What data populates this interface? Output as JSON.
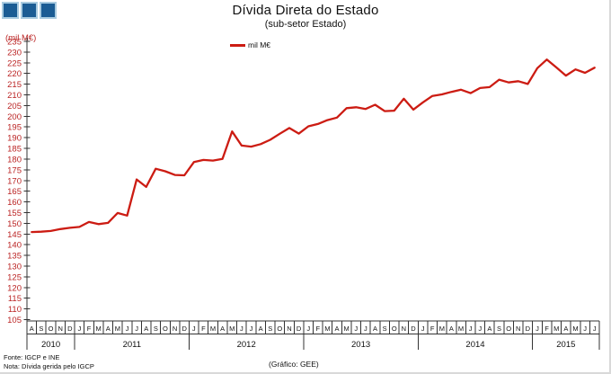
{
  "header": {
    "title": "Dívida Direta do Estado",
    "subtitle": "(sub-setor Estado)"
  },
  "legend": {
    "label": "mil M€"
  },
  "y_axis_unit": "(mil M€)",
  "footer": {
    "fonte": "Fonte: IGCP e INE",
    "nota": "Nota: Dívida gerida pelo IGCP",
    "grafico": "(Gráfico: GEE)"
  },
  "colors": {
    "line": "#cc1c13",
    "tick_label": "#bb2424",
    "axis": "#333333",
    "logo_blue": "#1b5c94",
    "logo_border": "#a9cbe0"
  },
  "chart_data": {
    "type": "line",
    "title": "Dívida Direta do Estado",
    "subtitle": "(sub-setor Estado)",
    "series_name": "mil M€",
    "ylabel": "(mil M€)",
    "ylim": [
      105,
      235
    ],
    "y_tick_step": 5,
    "legend_position": "top",
    "grid": false,
    "years": [
      {
        "label": "2010",
        "months": [
          "A",
          "S",
          "O",
          "N",
          "D"
        ],
        "values": [
          145.9,
          146.1,
          146.4,
          147.3,
          147.9
        ]
      },
      {
        "label": "2011",
        "months": [
          "J",
          "F",
          "M",
          "A",
          "M",
          "J",
          "J",
          "A",
          "S",
          "O",
          "N",
          "D"
        ],
        "values": [
          148.3,
          150.6,
          149.6,
          150.2,
          154.8,
          153.6,
          170.5,
          167.0,
          175.5,
          174.3,
          172.6,
          172.4
        ]
      },
      {
        "label": "2012",
        "months": [
          "J",
          "F",
          "M",
          "A",
          "M",
          "J",
          "J",
          "A",
          "S",
          "O",
          "N",
          "D"
        ],
        "values": [
          178.6,
          179.6,
          179.3,
          180.1,
          192.9,
          186.3,
          185.8,
          187.0,
          189.0,
          191.8,
          194.5,
          191.9
        ]
      },
      {
        "label": "2013",
        "months": [
          "J",
          "F",
          "M",
          "A",
          "M",
          "J",
          "J",
          "A",
          "S",
          "O",
          "N",
          "D"
        ],
        "values": [
          195.3,
          196.4,
          198.2,
          199.4,
          203.8,
          204.2,
          203.4,
          205.4,
          202.4,
          202.6,
          208.2,
          203.1
        ]
      },
      {
        "label": "2014",
        "months": [
          "J",
          "F",
          "M",
          "A",
          "M",
          "J",
          "J",
          "A",
          "S",
          "O",
          "N",
          "D"
        ],
        "values": [
          206.5,
          209.5,
          210.2,
          211.4,
          212.4,
          210.8,
          213.2,
          213.6,
          217.1,
          215.8,
          216.4,
          215.1
        ]
      },
      {
        "label": "2015",
        "months": [
          "J",
          "F",
          "M",
          "A",
          "M",
          "J",
          "J"
        ],
        "values": [
          222.5,
          226.5,
          222.8,
          219.0,
          221.9,
          220.3,
          222.7
        ]
      }
    ]
  }
}
